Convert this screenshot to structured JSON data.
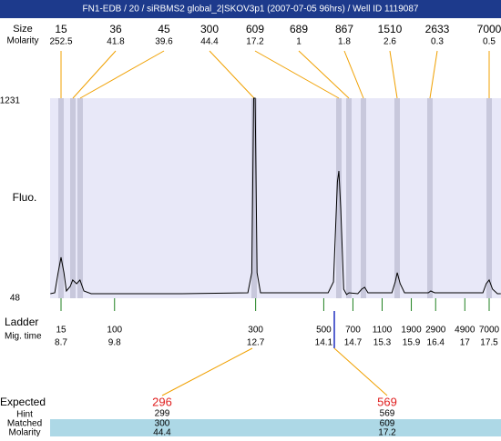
{
  "header": {
    "title": "FN1-EDB / 20 / siRBMS2 global_2|SKOV3p1 (2007-07-05 96hrs) / Well ID 1119087"
  },
  "peaks": {
    "size_label": "Size",
    "molarity_label": "Molarity",
    "sizes": [
      "15",
      "36",
      "45",
      "300",
      "609",
      "689",
      "867",
      "1510",
      "2633",
      "7000"
    ],
    "molarities": [
      "252.5",
      "41.8",
      "39.6",
      "44.4",
      "17.2",
      "1",
      "1.8",
      "2.6",
      "0.3",
      "0.5"
    ]
  },
  "plot": {
    "y_label": "Fluo.",
    "ylim": [
      48,
      1231
    ]
  },
  "trace": {
    "time": [
      8.48,
      8.57,
      8.64,
      8.7,
      8.76,
      8.81,
      8.89,
      8.94,
      9.02,
      9.09,
      9.17,
      9.32,
      11.19,
      12.54,
      12.62,
      12.66,
      12.69,
      12.73,
      12.8,
      14.19,
      14.3,
      14.38,
      14.41,
      14.45,
      14.51,
      14.57,
      14.62,
      14.8,
      14.88,
      14.94,
      15.01,
      15.5,
      15.57,
      15.61,
      15.67,
      15.76,
      16.25,
      16.3,
      16.38,
      17.37,
      17.44,
      17.5,
      17.57,
      17.67,
      17.74
    ],
    "fluo": [
      75,
      80,
      199,
      290,
      199,
      91,
      118,
      156,
      134,
      156,
      91,
      75,
      75,
      80,
      199,
      1231,
      1231,
      199,
      80,
      80,
      145,
      737,
      801,
      575,
      102,
      70,
      80,
      75,
      102,
      113,
      80,
      80,
      145,
      199,
      134,
      80,
      80,
      91,
      80,
      80,
      134,
      156,
      102,
      75,
      75
    ]
  },
  "ladder": {
    "label": "Ladder",
    "time_label": "Mig. time",
    "sizes": [
      "15",
      "100",
      "300",
      "500",
      "700",
      "1100",
      "1900",
      "2900",
      "4900",
      "7000"
    ],
    "times": [
      8.7,
      9.8,
      12.7,
      14.1,
      14.7,
      15.3,
      15.9,
      16.4,
      17,
      17.5
    ]
  },
  "expected": {
    "label": "Expected",
    "hint_label": "Hint",
    "matched_label": "Matched",
    "molarity_label": "Molarity",
    "items": [
      {
        "expected": "296",
        "hint": "299",
        "matched": "300",
        "molarity": "44.4"
      },
      {
        "expected": "569",
        "hint": "569",
        "matched": "609",
        "molarity": "17.2"
      }
    ]
  }
}
